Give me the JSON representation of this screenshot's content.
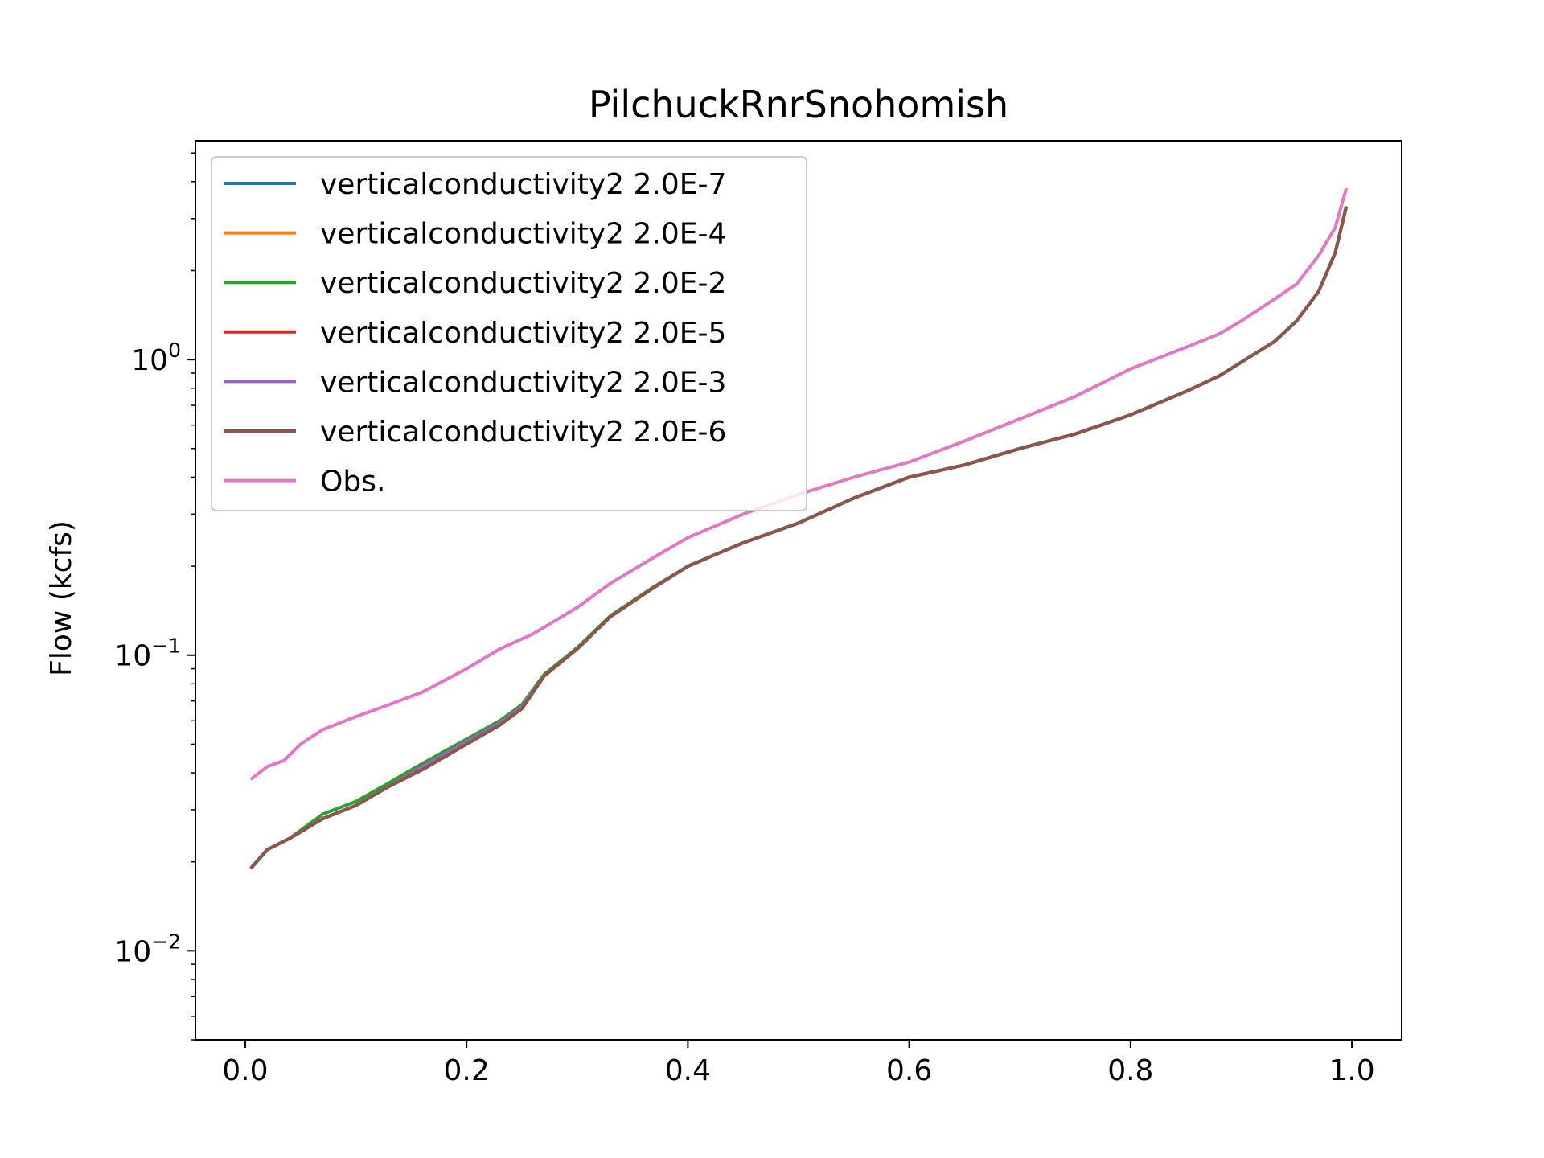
{
  "chart_data": {
    "type": "line",
    "title": "PilchuckRnrSnohomish",
    "xlabel": "",
    "ylabel": "Flow (kcfs)",
    "yscale": "log",
    "xlim": [
      -0.045,
      1.045
    ],
    "ylim": [
      0.005,
      5.5
    ],
    "xticks": [
      0.0,
      0.2,
      0.4,
      0.6,
      0.8,
      1.0
    ],
    "xtick_labels": [
      "0.0",
      "0.2",
      "0.4",
      "0.6",
      "0.8",
      "1.0"
    ],
    "yticks_major": [
      1,
      0.1,
      0.01
    ],
    "ytick_labels": [
      {
        "base": "10",
        "exp": "0"
      },
      {
        "base": "10",
        "exp": "−1"
      },
      {
        "base": "10",
        "exp": "−2"
      }
    ],
    "legend_position": "upper-left",
    "grid": false,
    "series": [
      {
        "name": "verticalconductivity2 2.0E-7",
        "color": "#1f77b4",
        "x": [
          0.005,
          0.02,
          0.04,
          0.07,
          0.1,
          0.13,
          0.16,
          0.2,
          0.23,
          0.25,
          0.27,
          0.3,
          0.33,
          0.37,
          0.4,
          0.45,
          0.5,
          0.55,
          0.6,
          0.65,
          0.7,
          0.75,
          0.8,
          0.85,
          0.88,
          0.9,
          0.93,
          0.95,
          0.97,
          0.985,
          0.995
        ],
        "y": [
          0.019,
          0.022,
          0.024,
          0.028,
          0.031,
          0.036,
          0.041,
          0.05,
          0.058,
          0.066,
          0.085,
          0.105,
          0.135,
          0.17,
          0.2,
          0.24,
          0.28,
          0.34,
          0.4,
          0.44,
          0.5,
          0.56,
          0.65,
          0.78,
          0.88,
          0.98,
          1.15,
          1.35,
          1.7,
          2.3,
          3.3
        ]
      },
      {
        "name": "verticalconductivity2 2.0E-4",
        "color": "#ff7f0e",
        "x": [
          0.005,
          0.02,
          0.04,
          0.07,
          0.1,
          0.13,
          0.16,
          0.2,
          0.23,
          0.25,
          0.27,
          0.3,
          0.33,
          0.37,
          0.4,
          0.45,
          0.5,
          0.55,
          0.6,
          0.65,
          0.7,
          0.75,
          0.8,
          0.85,
          0.88,
          0.9,
          0.93,
          0.95,
          0.97,
          0.985,
          0.995
        ],
        "y": [
          0.019,
          0.022,
          0.024,
          0.028,
          0.031,
          0.036,
          0.041,
          0.05,
          0.058,
          0.066,
          0.085,
          0.105,
          0.135,
          0.17,
          0.2,
          0.24,
          0.28,
          0.34,
          0.4,
          0.44,
          0.5,
          0.56,
          0.65,
          0.78,
          0.88,
          0.98,
          1.15,
          1.35,
          1.7,
          2.3,
          3.3
        ]
      },
      {
        "name": "verticalconductivity2 2.0E-2",
        "color": "#2ca02c",
        "x": [
          0.005,
          0.02,
          0.04,
          0.07,
          0.1,
          0.13,
          0.16,
          0.2,
          0.23,
          0.25,
          0.27,
          0.3,
          0.33,
          0.37,
          0.4,
          0.45,
          0.5,
          0.55,
          0.6,
          0.65,
          0.7,
          0.75,
          0.8,
          0.85,
          0.88,
          0.9,
          0.93,
          0.95,
          0.97,
          0.985,
          0.995
        ],
        "y": [
          0.019,
          0.022,
          0.024,
          0.029,
          0.032,
          0.037,
          0.043,
          0.052,
          0.06,
          0.068,
          0.086,
          0.106,
          0.136,
          0.171,
          0.2,
          0.24,
          0.28,
          0.34,
          0.4,
          0.44,
          0.5,
          0.56,
          0.65,
          0.78,
          0.88,
          0.98,
          1.15,
          1.35,
          1.7,
          2.3,
          3.3
        ]
      },
      {
        "name": "verticalconductivity2 2.0E-5",
        "color": "#d62728",
        "x": [
          0.005,
          0.02,
          0.04,
          0.07,
          0.1,
          0.13,
          0.16,
          0.2,
          0.23,
          0.25,
          0.27,
          0.3,
          0.33,
          0.37,
          0.4,
          0.45,
          0.5,
          0.55,
          0.6,
          0.65,
          0.7,
          0.75,
          0.8,
          0.85,
          0.88,
          0.9,
          0.93,
          0.95,
          0.97,
          0.985,
          0.995
        ],
        "y": [
          0.019,
          0.022,
          0.024,
          0.028,
          0.031,
          0.036,
          0.041,
          0.05,
          0.058,
          0.066,
          0.085,
          0.105,
          0.135,
          0.17,
          0.2,
          0.24,
          0.28,
          0.34,
          0.4,
          0.44,
          0.5,
          0.56,
          0.65,
          0.78,
          0.88,
          0.98,
          1.15,
          1.35,
          1.7,
          2.3,
          3.3
        ]
      },
      {
        "name": "verticalconductivity2 2.0E-3",
        "color": "#9467bd",
        "x": [
          0.005,
          0.02,
          0.04,
          0.07,
          0.1,
          0.13,
          0.16,
          0.2,
          0.23,
          0.25,
          0.27,
          0.3,
          0.33,
          0.37,
          0.4,
          0.45,
          0.5,
          0.55,
          0.6,
          0.65,
          0.7,
          0.75,
          0.8,
          0.85,
          0.88,
          0.9,
          0.93,
          0.95,
          0.97,
          0.985,
          0.995
        ],
        "y": [
          0.019,
          0.022,
          0.024,
          0.028,
          0.031,
          0.036,
          0.042,
          0.051,
          0.059,
          0.067,
          0.085,
          0.105,
          0.135,
          0.17,
          0.2,
          0.24,
          0.28,
          0.34,
          0.4,
          0.44,
          0.5,
          0.56,
          0.65,
          0.78,
          0.88,
          0.98,
          1.15,
          1.35,
          1.7,
          2.3,
          3.3
        ]
      },
      {
        "name": "verticalconductivity2 2.0E-6",
        "color": "#8c564b",
        "x": [
          0.005,
          0.02,
          0.04,
          0.07,
          0.1,
          0.13,
          0.16,
          0.2,
          0.23,
          0.25,
          0.27,
          0.3,
          0.33,
          0.37,
          0.4,
          0.45,
          0.5,
          0.55,
          0.6,
          0.65,
          0.7,
          0.75,
          0.8,
          0.85,
          0.88,
          0.9,
          0.93,
          0.95,
          0.97,
          0.985,
          0.995
        ],
        "y": [
          0.019,
          0.022,
          0.024,
          0.028,
          0.031,
          0.036,
          0.041,
          0.05,
          0.058,
          0.066,
          0.085,
          0.105,
          0.135,
          0.17,
          0.2,
          0.24,
          0.28,
          0.34,
          0.4,
          0.44,
          0.5,
          0.56,
          0.65,
          0.78,
          0.88,
          0.98,
          1.15,
          1.35,
          1.7,
          2.3,
          3.3
        ]
      },
      {
        "name": "Obs.",
        "color": "#e377c2",
        "x": [
          0.005,
          0.02,
          0.035,
          0.05,
          0.07,
          0.1,
          0.13,
          0.16,
          0.2,
          0.23,
          0.26,
          0.3,
          0.33,
          0.37,
          0.4,
          0.45,
          0.5,
          0.55,
          0.6,
          0.65,
          0.7,
          0.75,
          0.8,
          0.85,
          0.88,
          0.9,
          0.93,
          0.95,
          0.97,
          0.985,
          0.995
        ],
        "y": [
          0.038,
          0.042,
          0.044,
          0.05,
          0.056,
          0.062,
          0.068,
          0.075,
          0.09,
          0.105,
          0.118,
          0.145,
          0.175,
          0.215,
          0.25,
          0.3,
          0.35,
          0.4,
          0.45,
          0.53,
          0.63,
          0.75,
          0.93,
          1.1,
          1.22,
          1.35,
          1.6,
          1.8,
          2.25,
          2.8,
          3.8
        ]
      }
    ]
  }
}
